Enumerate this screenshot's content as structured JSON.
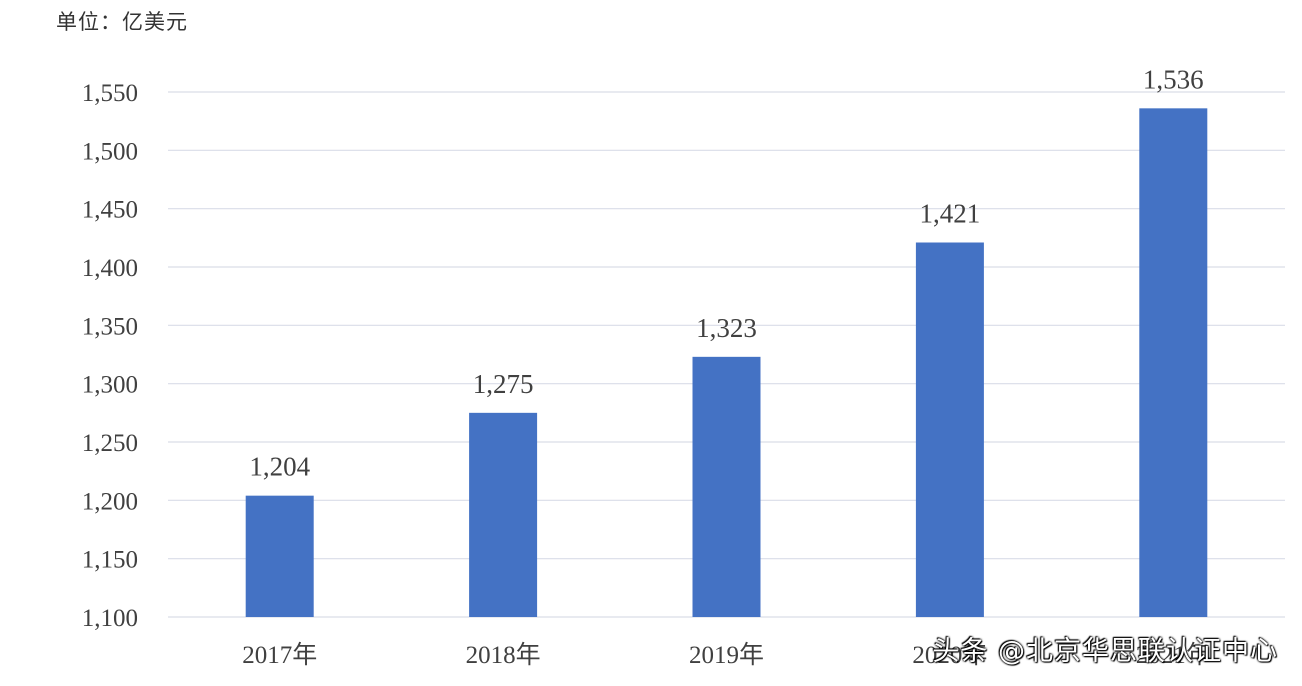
{
  "unit_label": "单位：亿美元",
  "watermark": "头条 @北京华思联认证中心",
  "colors": {
    "bar": "#4472c4",
    "grid": "#d9dde8",
    "text": "#404040"
  },
  "chart_data": {
    "type": "bar",
    "categories": [
      "2017年",
      "2018年",
      "2019年",
      "2020年",
      "2021年"
    ],
    "values": [
      1204,
      1275,
      1323,
      1421,
      1536
    ],
    "data_labels": [
      "1,204",
      "1,275",
      "1,323",
      "1,421",
      "1,536"
    ],
    "ylim": [
      1100,
      1550
    ],
    "yticks": [
      1100,
      1150,
      1200,
      1250,
      1300,
      1350,
      1400,
      1450,
      1500,
      1550
    ],
    "ytick_labels": [
      "1,100",
      "1,150",
      "1,200",
      "1,250",
      "1,300",
      "1,350",
      "1,400",
      "1,450",
      "1,500",
      "1,550"
    ],
    "grid": true,
    "legend": "none",
    "title": "",
    "xlabel": "",
    "ylabel": ""
  }
}
